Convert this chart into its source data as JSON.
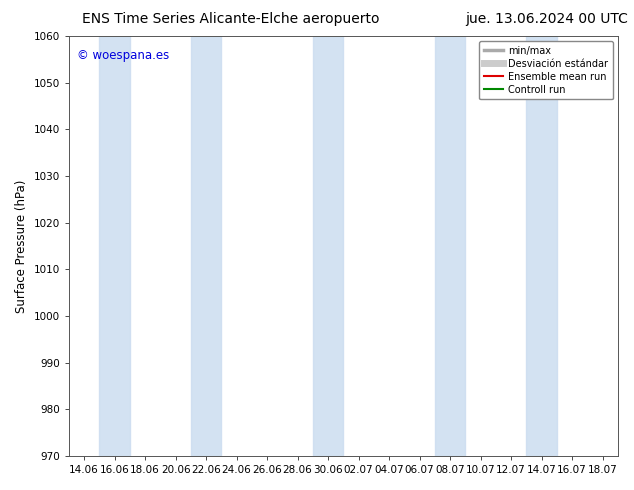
{
  "title_left": "ENS Time Series Alicante-Elche aeropuerto",
  "title_right": "jue. 13.06.2024 00 UTC",
  "ylabel": "Surface Pressure (hPa)",
  "ylim": [
    970,
    1060
  ],
  "yticks": [
    970,
    980,
    990,
    1000,
    1010,
    1020,
    1030,
    1040,
    1050,
    1060
  ],
  "xtick_labels": [
    "14.06",
    "16.06",
    "18.06",
    "20.06",
    "22.06",
    "24.06",
    "26.06",
    "28.06",
    "30.06",
    "02.07",
    "04.07",
    "06.07",
    "08.07",
    "10.07",
    "12.07",
    "14.07",
    "16.07",
    "18.07"
  ],
  "watermark": "© woespana.es",
  "watermark_color": "#0000dd",
  "background_color": "#ffffff",
  "shaded_band_color": "#ccddf0",
  "shaded_band_alpha": 0.85,
  "shaded_band_positions": [
    1,
    4,
    8,
    12,
    15
  ],
  "legend_entries": [
    {
      "label": "min/max",
      "color": "#aaaaaa",
      "lw": 2.5
    },
    {
      "label": "Desviación estándar",
      "color": "#cccccc",
      "lw": 5
    },
    {
      "label": "Ensemble mean run",
      "color": "#dd0000",
      "lw": 1.5
    },
    {
      "label": "Controll run",
      "color": "#008800",
      "lw": 1.5
    }
  ],
  "title_fontsize": 10,
  "tick_fontsize": 7.5,
  "ylabel_fontsize": 8.5,
  "watermark_fontsize": 8.5,
  "legend_fontsize": 7
}
